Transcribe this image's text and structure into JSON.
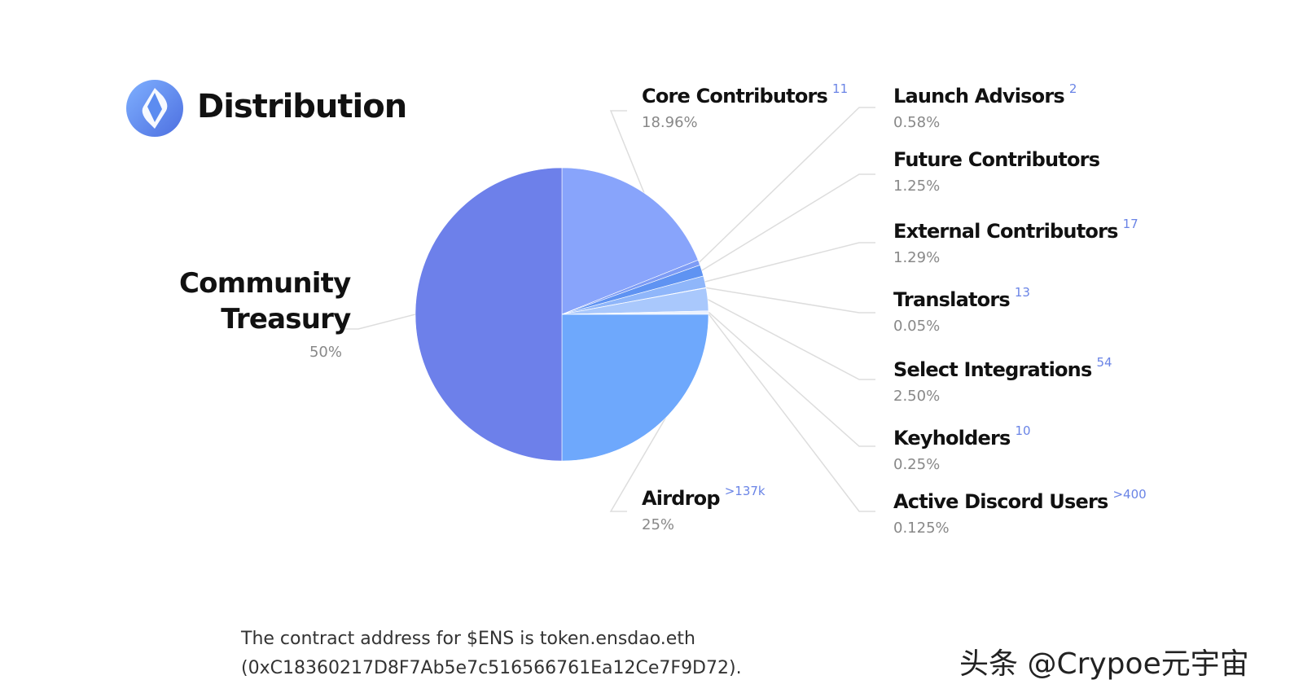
{
  "chart_data": {
    "type": "pie",
    "title": "Distribution",
    "categories": [
      "Core Contributors",
      "Launch Advisors",
      "Future Contributors",
      "External Contributors",
      "Translators",
      "Select Integrations",
      "Keyholders",
      "Active Discord Users",
      "Airdrop",
      "Community Treasury"
    ],
    "values": [
      18.96,
      0.58,
      1.25,
      1.29,
      0.05,
      2.5,
      0.25,
      0.125,
      25,
      50
    ],
    "value_labels": [
      "18.96%",
      "0.58%",
      "1.25%",
      "1.29%",
      "0.05%",
      "2.50%",
      "0.25%",
      "0.125%",
      "25%",
      "50%"
    ],
    "annotations": [
      "11",
      "2",
      null,
      "17",
      "13",
      "54",
      "10",
      ">400",
      ">137k",
      null
    ],
    "colors": [
      "#88a4fb",
      "#7d9cf5",
      "#5f93f2",
      "#8fb6fa",
      "#b5cffd",
      "#a9c8fc",
      "#e6eefe",
      "#d5e3fd",
      "#6ea8fc",
      "#6d80ea"
    ],
    "footer": [
      "The contract address for $ENS is token.ensdao.eth",
      "(0xC18360217D8F7Ab5e7c516566761Ea12Ce7F9D72)."
    ],
    "watermark": "头条 @Crypoe元宇宙"
  }
}
